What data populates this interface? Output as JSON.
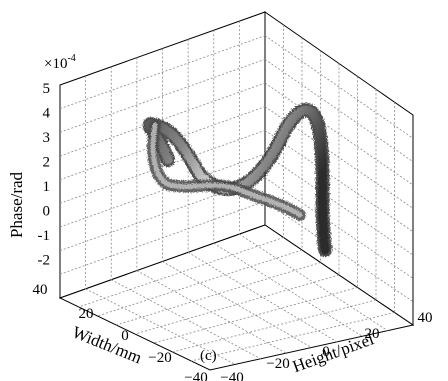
{
  "chart_data": {
    "type": "surface3d",
    "panel_label": "(c)",
    "zlabel": "Phase/rad",
    "ylabel": "Width/mm",
    "xlabel": "Height/pixel",
    "z_multiplier": "×10",
    "z_multiplier_exp": "-4",
    "z_ticks": [
      "5",
      "4",
      "3",
      "2",
      "1",
      "0",
      "-1",
      "-2"
    ],
    "z_range": [
      -2.5,
      5
    ],
    "y_ticks": [
      "40",
      "20",
      "0",
      "−20",
      "−40"
    ],
    "y_range": [
      -40,
      40
    ],
    "x_ticks": [
      "−40",
      "−20",
      "0",
      "20",
      "40"
    ],
    "x_range": [
      -40,
      40
    ],
    "grid": true,
    "colormap": "gray",
    "curve": {
      "description_points": [
        {
          "x": 30,
          "y": -30,
          "z": -2.4
        },
        {
          "x": 25,
          "y": -25,
          "z": 0.5
        },
        {
          "x": 10,
          "y": -5,
          "z": 3.5
        },
        {
          "x": -5,
          "y": 10,
          "z": 2.8
        },
        {
          "x": -20,
          "y": 20,
          "z": 1.5
        },
        {
          "x": -30,
          "y": 25,
          "z": 2.5
        },
        {
          "x": -35,
          "y": 30,
          "z": 1.8
        },
        {
          "x": -25,
          "y": 25,
          "z": 0.3
        },
        {
          "x": -5,
          "y": 10,
          "z": 0.9
        },
        {
          "x": 15,
          "y": -5,
          "z": 1.6
        }
      ]
    }
  }
}
